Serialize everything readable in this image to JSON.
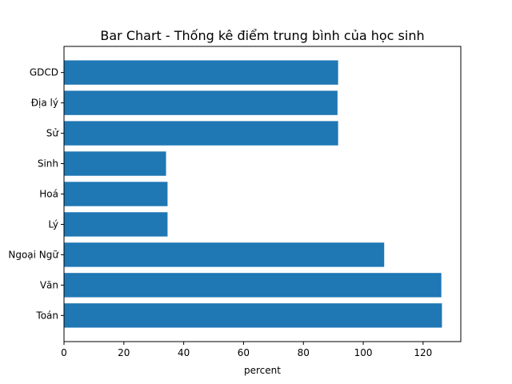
{
  "chart_data": {
    "type": "bar",
    "orientation": "horizontal",
    "title": "Bar Chart - Thống kê điểm trung bình của học sinh",
    "xlabel": "percent",
    "ylabel": "",
    "categories": [
      "Toán",
      "Văn",
      "Ngoại Ngữ",
      "Lý",
      "Hoá",
      "Sinh",
      "Sử",
      "Địa lý",
      "GDCD"
    ],
    "values": [
      126.3,
      126.1,
      107.0,
      34.6,
      34.6,
      34.1,
      91.6,
      91.4,
      91.6
    ],
    "xlim": [
      0,
      132.6
    ],
    "xticks": [
      0,
      20,
      40,
      60,
      80,
      100,
      120
    ],
    "grid": false,
    "colors": {
      "bar": "#1f77b4"
    }
  }
}
